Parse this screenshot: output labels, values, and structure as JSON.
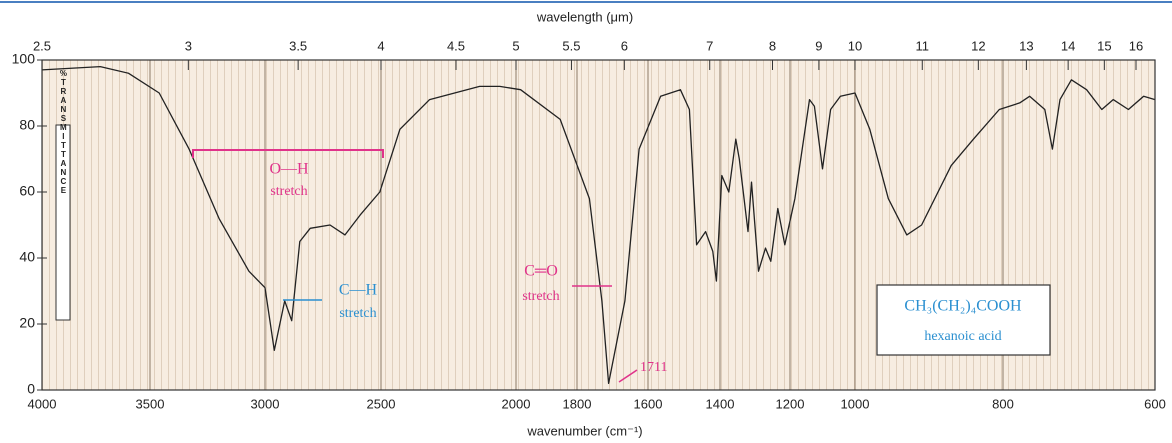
{
  "chart_data": {
    "type": "line",
    "x_label": "wavenumber (cm⁻¹)",
    "x2_label": "wavelength (μm)",
    "y_label": "%TRANSMITTANCE",
    "xlim": [
      4000,
      600
    ],
    "xticks": [
      4000,
      3500,
      3000,
      2500,
      2000,
      1800,
      1600,
      1400,
      1200,
      1000,
      800,
      600
    ],
    "x2ticks": [
      2.5,
      3,
      3.5,
      4,
      4.5,
      5,
      5.5,
      6,
      7,
      8,
      9,
      10,
      11,
      12,
      13,
      14,
      15,
      16
    ],
    "ylim": [
      0,
      100
    ],
    "yticks": [
      0,
      20,
      40,
      60,
      80,
      100
    ],
    "color": "#222222",
    "x": [
      4000,
      3730,
      3600,
      3460,
      3330,
      3200,
      3070,
      3000,
      2960,
      2915,
      2885,
      2850,
      2805,
      2720,
      2655,
      2590,
      2505,
      2430,
      2320,
      2135,
      2060,
      1985,
      1855,
      1765,
      1730,
      1711,
      1665,
      1625,
      1565,
      1510,
      1485,
      1465,
      1440,
      1420,
      1410,
      1395,
      1375,
      1355,
      1345,
      1320,
      1310,
      1290,
      1270,
      1255,
      1235,
      1215,
      1185,
      1140,
      1125,
      1100,
      1075,
      1045,
      1000,
      980,
      955,
      930,
      910,
      870,
      840,
      805,
      778,
      765,
      745,
      735,
      725,
      710,
      690,
      670,
      655,
      635,
      615,
      600
    ],
    "values": [
      97,
      98,
      96,
      90,
      73,
      52,
      36,
      31,
      12,
      27,
      21,
      45,
      49,
      50,
      47,
      53,
      60,
      79,
      88,
      92,
      92,
      91,
      82,
      58,
      27,
      2,
      27,
      73,
      89,
      91,
      85,
      44,
      48,
      42,
      33,
      65,
      60,
      76,
      70,
      48,
      63,
      36,
      43,
      39,
      55,
      44,
      58,
      88,
      86,
      67,
      85,
      89,
      90,
      79,
      58,
      47,
      50,
      68,
      76,
      85,
      87,
      89,
      85,
      73,
      88,
      94,
      91,
      85,
      88,
      85,
      89,
      88
    ],
    "annotations": {
      "oh": [
        "O—H",
        "stretch"
      ],
      "ch": [
        "C—H",
        "stretch"
      ],
      "co": [
        "C═O",
        "stretch"
      ],
      "peak": "1711",
      "compound": [
        "CH₃(CH₂)₄COOH",
        "hexanoic acid"
      ]
    }
  }
}
